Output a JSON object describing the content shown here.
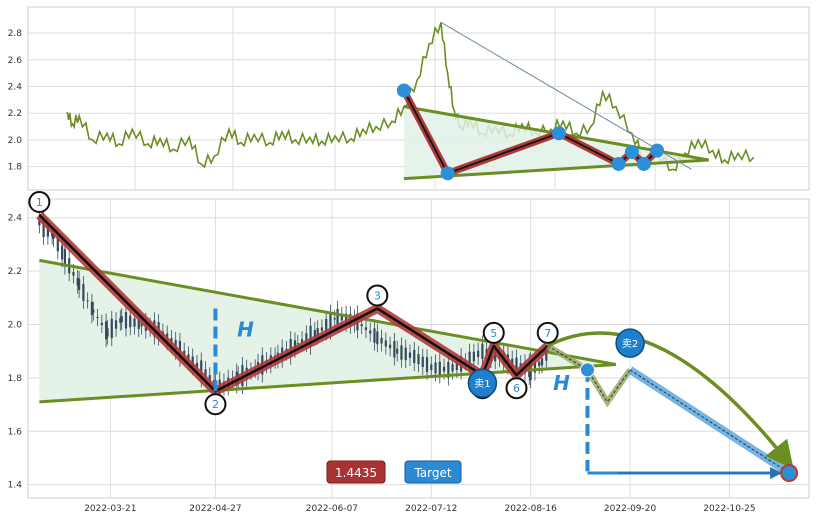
{
  "chart_data": [
    {
      "type": "line",
      "panel": "overview",
      "title": "",
      "ylim": [
        1.7,
        2.95
      ],
      "y_ticks": [
        "1.8",
        "2.0",
        "2.2",
        "2.4",
        "2.6",
        "2.8"
      ],
      "grid": true,
      "series": [
        {
          "color": "#6b8e23",
          "x": [
            "2021-06-01",
            "2021-06-05",
            "2021-06-10",
            "2021-06-20",
            "2021-07-01",
            "2021-07-10",
            "2021-07-20",
            "2021-08-01",
            "2021-08-10",
            "2021-08-20",
            "2021-09-01",
            "2021-09-10",
            "2021-09-20",
            "2021-10-01",
            "2021-10-10",
            "2021-10-20",
            "2021-11-01",
            "2021-11-10",
            "2021-11-20",
            "2021-12-01",
            "2021-12-10",
            "2021-12-20",
            "2022-01-01",
            "2022-01-10",
            "2022-01-20",
            "2022-02-01",
            "2022-02-10",
            "2022-02-20",
            "2022-03-01",
            "2022-03-10",
            "2022-03-15",
            "2022-03-20",
            "2022-03-25",
            "2022-04-01",
            "2022-04-10",
            "2022-04-20",
            "2022-05-01",
            "2022-05-10",
            "2022-05-20",
            "2022-06-01",
            "2022-06-10",
            "2022-06-20",
            "2022-07-01",
            "2022-07-10",
            "2022-07-20",
            "2022-08-01",
            "2022-08-10",
            "2022-08-20",
            "2022-09-01",
            "2022-09-10",
            "2022-09-20",
            "2022-10-01",
            "2022-10-10",
            "2022-10-20",
            "2022-11-01"
          ],
          "values": [
            2.21,
            2.12,
            2.18,
            2.0,
            2.05,
            1.97,
            2.08,
            1.97,
            2.01,
            1.93,
            2.02,
            1.82,
            1.88,
            2.08,
            1.98,
            2.04,
            1.98,
            2.06,
            2.0,
            2.02,
            1.99,
            2.03,
            2.01,
            2.08,
            2.1,
            2.14,
            2.25,
            2.45,
            2.72,
            2.88,
            2.5,
            2.22,
            2.1,
            2.15,
            2.05,
            2.1,
            2.04,
            2.12,
            2.06,
            2.08,
            2.14,
            2.05,
            2.1,
            2.36,
            2.25,
            2.05,
            1.87,
            1.9,
            1.78,
            1.9,
            2.0,
            1.92,
            1.85,
            1.9,
            1.87
          ]
        }
      ],
      "pattern_points": [
        {
          "x": "2022-02-10",
          "y": 2.37
        },
        {
          "x": "2022-03-15",
          "y": 1.75
        },
        {
          "x": "2022-06-07",
          "y": 2.05
        },
        {
          "x": "2022-07-22",
          "y": 1.82
        },
        {
          "x": "2022-08-01",
          "y": 1.91
        },
        {
          "x": "2022-08-10",
          "y": 1.82
        },
        {
          "x": "2022-08-20",
          "y": 1.92
        }
      ],
      "trendlines": [
        {
          "from": {
            "x": "2022-02-10",
            "y": 2.25
          },
          "to": {
            "x": "2022-09-28",
            "y": 1.85
          }
        },
        {
          "from": {
            "x": "2022-02-10",
            "y": 1.71
          },
          "to": {
            "x": "2022-09-28",
            "y": 1.85
          }
        }
      ]
    },
    {
      "type": "candlestick",
      "panel": "detail",
      "title": "",
      "xlabel": "",
      "ylabel": "",
      "ylim": [
        1.35,
        2.47
      ],
      "y_ticks": [
        "1.4",
        "1.6",
        "1.8",
        "2.0",
        "2.2",
        "2.4"
      ],
      "x_ticks": [
        "2022-03-21",
        "2022-04-27",
        "2022-06-07",
        "2022-07-12",
        "2022-08-16",
        "2022-09-20",
        "2022-10-25"
      ],
      "xlim": [
        "2022-02-20",
        "2022-11-22"
      ],
      "grid": true,
      "price_series": {
        "color": "#34495e",
        "x": [
          "2022-02-24",
          "2022-03-01",
          "2022-03-05",
          "2022-03-10",
          "2022-03-15",
          "2022-03-20",
          "2022-03-25",
          "2022-04-01",
          "2022-04-07",
          "2022-04-13",
          "2022-04-19",
          "2022-04-25",
          "2022-04-27",
          "2022-05-05",
          "2022-05-12",
          "2022-05-19",
          "2022-05-26",
          "2022-06-02",
          "2022-06-09",
          "2022-06-16",
          "2022-06-23",
          "2022-06-30",
          "2022-07-06",
          "2022-07-12",
          "2022-07-18",
          "2022-07-24",
          "2022-07-30",
          "2022-08-05",
          "2022-08-11",
          "2022-08-16",
          "2022-08-20",
          "2022-08-23"
        ],
        "values": [
          2.38,
          2.33,
          2.25,
          2.15,
          2.05,
          1.97,
          2.02,
          2.0,
          1.98,
          1.92,
          1.86,
          1.8,
          1.76,
          1.8,
          1.84,
          1.88,
          1.93,
          1.97,
          2.03,
          2.01,
          1.95,
          1.9,
          1.88,
          1.84,
          1.83,
          1.86,
          1.9,
          1.88,
          1.85,
          1.83,
          1.86,
          1.9
        ]
      },
      "pattern_points": [
        {
          "label": "1",
          "x": "2022-02-24",
          "y": 2.41
        },
        {
          "label": "2",
          "x": "2022-04-27",
          "y": 1.75
        },
        {
          "label": "3",
          "x": "2022-06-23",
          "y": 2.06
        },
        {
          "label": "4",
          "x": "2022-07-30",
          "y": 1.81
        },
        {
          "label": "5",
          "x": "2022-08-03",
          "y": 1.92
        },
        {
          "label": "6",
          "x": "2022-08-11",
          "y": 1.81
        },
        {
          "label": "7",
          "x": "2022-08-22",
          "y": 1.92
        }
      ],
      "trendlines": [
        {
          "name": "upper",
          "from": {
            "x": "2022-02-24",
            "y": 2.24
          },
          "to": {
            "x": "2022-09-15",
            "y": 1.85
          }
        },
        {
          "name": "lower",
          "from": {
            "x": "2022-02-24",
            "y": 1.71
          },
          "to": {
            "x": "2022-09-15",
            "y": 1.85
          }
        }
      ],
      "projection": [
        {
          "x": "2022-08-22",
          "y": 1.92
        },
        {
          "x": "2022-09-05",
          "y": 1.83
        },
        {
          "x": "2022-09-12",
          "y": 1.71
        },
        {
          "x": "2022-09-20",
          "y": 1.83
        },
        {
          "x": "2022-11-15",
          "y": 1.4435
        }
      ],
      "sell_points": [
        {
          "label": "卖1",
          "x": "2022-07-30",
          "y": 1.78
        },
        {
          "label": "卖2",
          "x": "2022-09-20",
          "y": 1.93
        }
      ],
      "height_markers": [
        {
          "label": "H",
          "x": "2022-04-27",
          "from": 1.75,
          "to": 2.06
        },
        {
          "label": "H",
          "x": "2022-09-05",
          "from": 1.45,
          "to": 1.83
        }
      ],
      "breakout_point": {
        "x": "2022-09-05",
        "y": 1.83
      },
      "target": {
        "label": "Target",
        "value": "1.4435",
        "x": "2022-11-15",
        "y": 1.4435
      }
    }
  ],
  "colors": {
    "price": "#34495e",
    "overview_line": "#6b8e23",
    "trendline": "#6b8e23",
    "zigzag": "#b03a3a",
    "triangle_fill": "#e2f1e6",
    "marker_blue": "#2b8fd9",
    "target_value_bg": "#a93232",
    "target_label_bg": "#2a8ad6"
  }
}
